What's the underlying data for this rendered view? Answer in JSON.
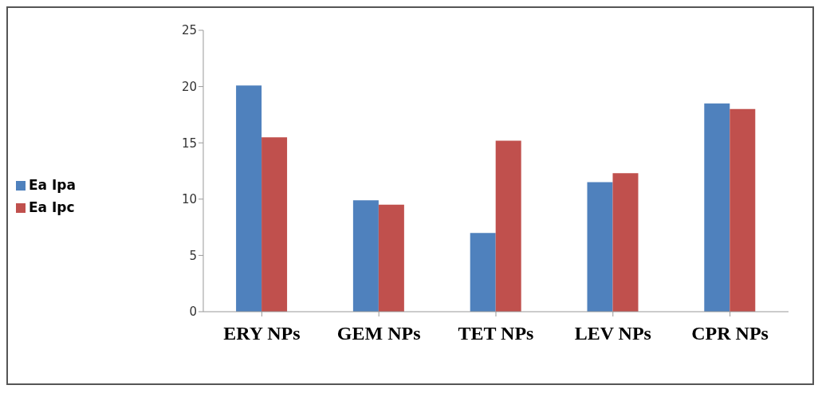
{
  "chart_data": {
    "type": "bar",
    "categories": [
      "ERY NPs",
      "GEM NPs",
      "TET NPs",
      "LEV NPs",
      "CPR NPs"
    ],
    "series": [
      {
        "name": "Ea Ipa",
        "color": "#4f81bd",
        "values": [
          20.1,
          9.9,
          7.0,
          11.5,
          18.5
        ]
      },
      {
        "name": "Ea Ipc",
        "color": "#c0504d",
        "values": [
          15.5,
          9.5,
          15.2,
          12.3,
          18.0
        ]
      }
    ],
    "ylim": [
      0,
      25
    ],
    "yticks": [
      0,
      5,
      10,
      15,
      20,
      25
    ],
    "grid": false,
    "legend": "left"
  }
}
